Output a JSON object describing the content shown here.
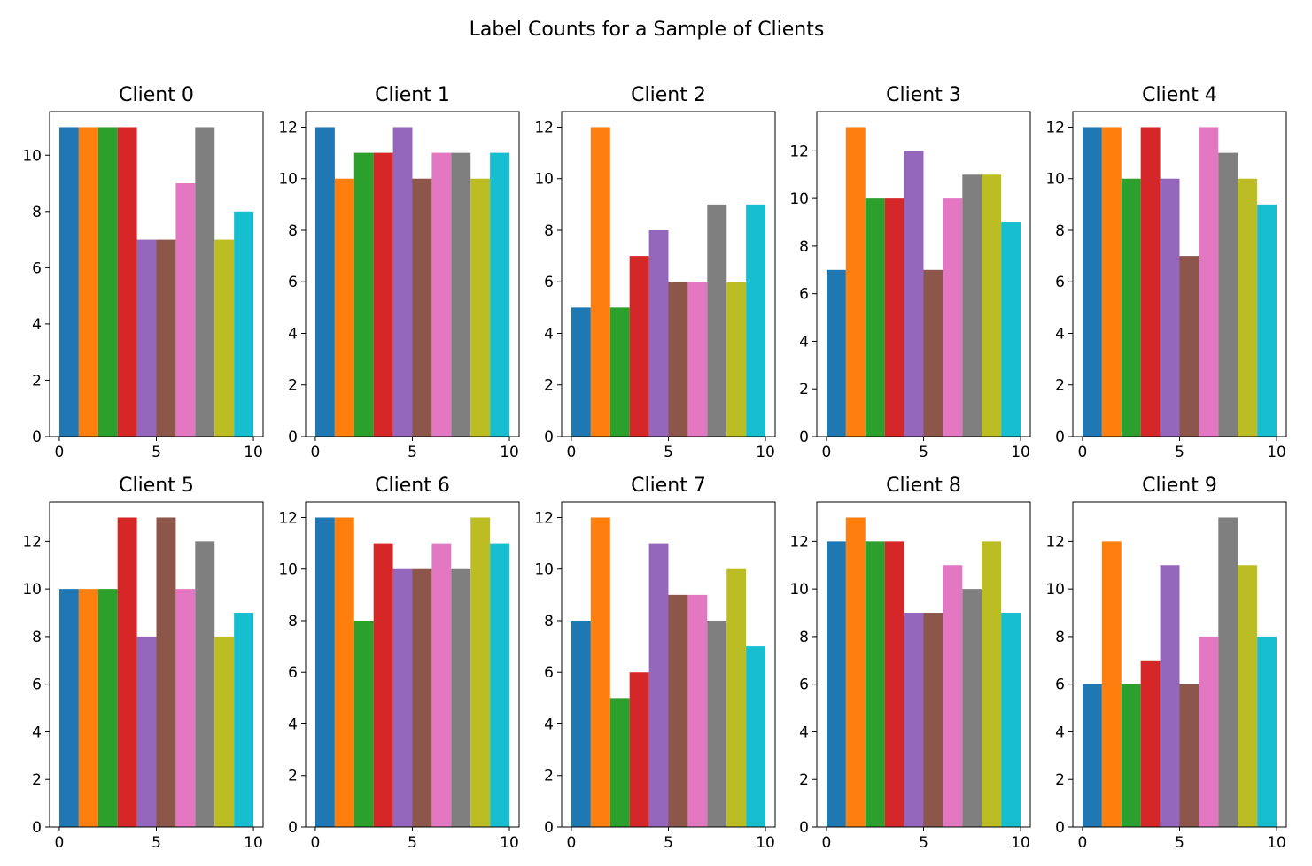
{
  "chart_data": {
    "type": "bar",
    "title": "Label Counts for a Sample of Clients",
    "bar_colors": [
      "#1f77b4",
      "#ff7f0e",
      "#2ca02c",
      "#d62728",
      "#9467bd",
      "#8c564b",
      "#e377c2",
      "#7f7f7f",
      "#bcbd22",
      "#17becf"
    ],
    "xlim": [
      -0.5,
      10.5
    ],
    "xticks": [
      0,
      5,
      10
    ],
    "panels": [
      {
        "title": "Client 0",
        "bin_edges": [
          0,
          1,
          2,
          3,
          4,
          5,
          6,
          7,
          8,
          9,
          10
        ],
        "values": [
          11,
          11,
          11,
          11,
          7,
          7,
          9,
          11,
          7,
          8
        ],
        "ylim": [
          0,
          11.55
        ],
        "yticks": [
          0,
          2,
          4,
          6,
          8,
          10
        ]
      },
      {
        "title": "Client 1",
        "bin_edges": [
          0,
          1,
          2,
          3,
          4,
          5,
          6,
          7,
          8,
          9,
          10
        ],
        "values": [
          12,
          10,
          11,
          11,
          12,
          10,
          11,
          11,
          10,
          11
        ],
        "ylim": [
          0,
          12.6
        ],
        "yticks": [
          0,
          2,
          4,
          6,
          8,
          10,
          12
        ]
      },
      {
        "title": "Client 2",
        "bin_edges": [
          0,
          1,
          2,
          3,
          4,
          5,
          6,
          7,
          8,
          9,
          10
        ],
        "values": [
          5,
          12,
          5,
          7,
          8,
          6,
          6,
          9,
          6,
          9
        ],
        "ylim": [
          0,
          12.6
        ],
        "yticks": [
          0,
          2,
          4,
          6,
          8,
          10,
          12
        ]
      },
      {
        "title": "Client 3",
        "bin_edges": [
          0,
          1,
          2,
          3,
          4,
          5,
          6,
          7,
          8,
          9,
          10
        ],
        "values": [
          7,
          13,
          10,
          10,
          12,
          7,
          10,
          11,
          11,
          9
        ],
        "ylim": [
          0,
          13.65
        ],
        "yticks": [
          0,
          2,
          4,
          6,
          8,
          10,
          12
        ]
      },
      {
        "title": "Client 4",
        "bin_edges": [
          0,
          1,
          2,
          3,
          4,
          5,
          6,
          7,
          8,
          9,
          10
        ],
        "values": [
          12,
          12,
          10,
          12,
          10,
          7,
          12,
          11,
          10,
          9
        ],
        "ylim": [
          0,
          12.6
        ],
        "yticks": [
          0,
          2,
          4,
          6,
          8,
          10,
          12
        ]
      },
      {
        "title": "Client 5",
        "bin_edges": [
          0,
          1,
          2,
          3,
          4,
          5,
          6,
          7,
          8,
          9,
          10
        ],
        "values": [
          10,
          10,
          10,
          13,
          8,
          13,
          10,
          12,
          8,
          9
        ],
        "ylim": [
          0,
          13.65
        ],
        "yticks": [
          0,
          2,
          4,
          6,
          8,
          10,
          12
        ]
      },
      {
        "title": "Client 6",
        "bin_edges": [
          0,
          1,
          2,
          3,
          4,
          5,
          6,
          7,
          8,
          9,
          10
        ],
        "values": [
          12,
          12,
          8,
          11,
          10,
          10,
          11,
          10,
          12,
          11
        ],
        "ylim": [
          0,
          12.6
        ],
        "yticks": [
          0,
          2,
          4,
          6,
          8,
          10,
          12
        ]
      },
      {
        "title": "Client 7",
        "bin_edges": [
          0,
          1,
          2,
          3,
          4,
          5,
          6,
          7,
          8,
          9,
          10
        ],
        "values": [
          8,
          12,
          5,
          6,
          11,
          9,
          9,
          8,
          10,
          7
        ],
        "ylim": [
          0,
          12.6
        ],
        "yticks": [
          0,
          2,
          4,
          6,
          8,
          10,
          12
        ]
      },
      {
        "title": "Client 8",
        "bin_edges": [
          0,
          1,
          2,
          3,
          4,
          5,
          6,
          7,
          8,
          9,
          10
        ],
        "values": [
          12,
          13,
          12,
          12,
          9,
          9,
          11,
          10,
          12,
          9
        ],
        "ylim": [
          0,
          13.65
        ],
        "yticks": [
          0,
          2,
          4,
          6,
          8,
          10,
          12
        ]
      },
      {
        "title": "Client 9",
        "bin_edges": [
          0,
          1,
          2,
          3,
          4,
          5,
          6,
          7,
          8,
          9,
          10
        ],
        "values": [
          6,
          12,
          6,
          7,
          11,
          6,
          8,
          13,
          11,
          8
        ],
        "ylim": [
          0,
          13.65
        ],
        "yticks": [
          0,
          2,
          4,
          6,
          8,
          10,
          12
        ]
      }
    ]
  }
}
